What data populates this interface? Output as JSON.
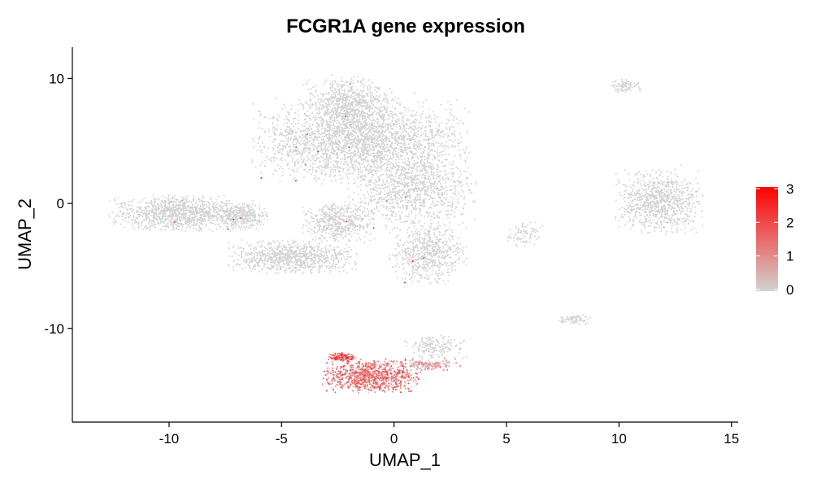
{
  "chart_data": {
    "type": "scatter",
    "title": "FCGR1A gene expression",
    "xlabel": "UMAP_1",
    "ylabel": "UMAP_2",
    "xlim": [
      -14.3,
      15.3
    ],
    "ylim": [
      -17.5,
      12.5
    ],
    "x_ticks": [
      -10,
      -5,
      0,
      5,
      10,
      15
    ],
    "y_ticks": [
      -10,
      0,
      10
    ],
    "grid": false,
    "legend": {
      "placement": "right",
      "min": 0,
      "max": 3,
      "ticks": [
        0,
        1,
        2,
        3
      ],
      "color_low": "#D3D3D3",
      "color_high": "#FF0000"
    },
    "clusters": [
      {
        "cx": -1.5,
        "cy": 5.0,
        "rx": 4.2,
        "ry": 3.0,
        "n": 2600,
        "expr": 0
      },
      {
        "cx": -2.0,
        "cy": 8.0,
        "rx": 1.8,
        "ry": 2.0,
        "n": 700,
        "expr": 0
      },
      {
        "cx": 0.8,
        "cy": 1.0,
        "rx": 2.5,
        "ry": 2.8,
        "n": 1000,
        "expr": 0
      },
      {
        "cx": -9.5,
        "cy": -0.8,
        "rx": 2.8,
        "ry": 1.3,
        "n": 1100,
        "expr": 0
      },
      {
        "cx": -6.7,
        "cy": -1.0,
        "rx": 1.0,
        "ry": 1.0,
        "n": 300,
        "expr": 0
      },
      {
        "cx": -4.5,
        "cy": -4.3,
        "rx": 2.5,
        "ry": 1.2,
        "n": 900,
        "expr": 0
      },
      {
        "cx": -2.5,
        "cy": -1.5,
        "rx": 1.5,
        "ry": 1.5,
        "n": 500,
        "expr": 0
      },
      {
        "cx": 1.5,
        "cy": -4.0,
        "rx": 1.5,
        "ry": 2.2,
        "n": 600,
        "expr": 0
      },
      {
        "cx": 11.8,
        "cy": 0.1,
        "rx": 1.7,
        "ry": 2.3,
        "n": 900,
        "expr": 0
      },
      {
        "cx": 10.3,
        "cy": 9.4,
        "rx": 0.6,
        "ry": 0.5,
        "n": 90,
        "expr": 0
      },
      {
        "cx": 8.0,
        "cy": -9.3,
        "rx": 0.65,
        "ry": 0.35,
        "n": 80,
        "expr": 0
      },
      {
        "cx": 5.8,
        "cy": -2.5,
        "rx": 0.7,
        "ry": 0.9,
        "n": 90,
        "expr": 0
      },
      {
        "cx": 1.8,
        "cy": -11.5,
        "rx": 1.3,
        "ry": 0.9,
        "n": 180,
        "expr": 0
      },
      {
        "cx": -1.0,
        "cy": -13.8,
        "rx": 1.9,
        "ry": 1.2,
        "n": 900,
        "expr": 1.5
      },
      {
        "cx": -2.3,
        "cy": -12.3,
        "rx": 0.55,
        "ry": 0.3,
        "n": 180,
        "expr": 1.9
      },
      {
        "cx": 1.5,
        "cy": -12.9,
        "rx": 1.3,
        "ry": 0.4,
        "n": 150,
        "expr": 1.0
      }
    ]
  }
}
